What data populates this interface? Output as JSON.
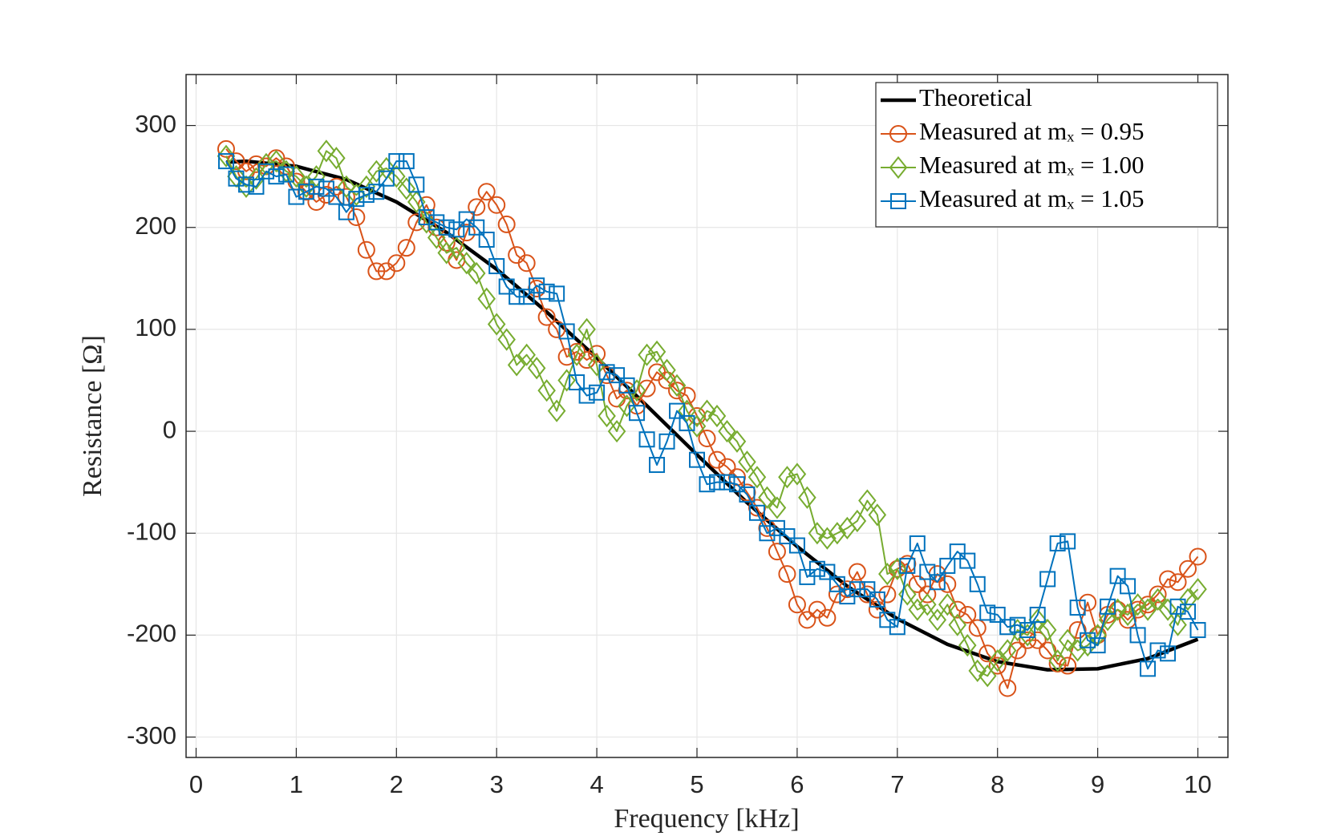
{
  "chart_data": {
    "type": "line",
    "xlabel": "Frequency [kHz]",
    "ylabel": "Resistance [Ω]",
    "xlim": [
      -0.1,
      10.3
    ],
    "ylim": [
      -320,
      350
    ],
    "xticks": [
      0,
      1,
      2,
      3,
      4,
      5,
      6,
      7,
      8,
      9,
      10
    ],
    "yticks": [
      -300,
      -200,
      -100,
      0,
      100,
      200,
      300
    ],
    "grid": true,
    "legend": "northeast",
    "x": [
      0.3,
      0.4,
      0.5,
      0.6,
      0.7,
      0.8,
      0.9,
      1.0,
      1.1,
      1.2,
      1.3,
      1.4,
      1.5,
      1.6,
      1.7,
      1.8,
      1.9,
      2.0,
      2.1,
      2.2,
      2.3,
      2.4,
      2.5,
      2.6,
      2.7,
      2.8,
      2.9,
      3.0,
      3.1,
      3.2,
      3.3,
      3.4,
      3.5,
      3.6,
      3.7,
      3.8,
      3.9,
      4.0,
      4.1,
      4.2,
      4.3,
      4.4,
      4.5,
      4.6,
      4.7,
      4.8,
      4.9,
      5.0,
      5.1,
      5.2,
      5.3,
      5.4,
      5.5,
      5.6,
      5.7,
      5.8,
      5.9,
      6.0,
      6.1,
      6.2,
      6.3,
      6.4,
      6.5,
      6.6,
      6.7,
      6.8,
      6.9,
      7.0,
      7.1,
      7.2,
      7.3,
      7.4,
      7.5,
      7.6,
      7.7,
      7.8,
      7.9,
      8.0,
      8.1,
      8.2,
      8.3,
      8.4,
      8.5,
      8.6,
      8.7,
      8.8,
      8.9,
      9.0,
      9.1,
      9.2,
      9.3,
      9.4,
      9.5,
      9.6,
      9.7,
      9.8,
      9.9,
      10.0
    ],
    "series": [
      {
        "name": "Theoretical",
        "color": "#000000",
        "marker": "none",
        "x": [
          0.3,
          0.5,
          1.0,
          1.5,
          2.0,
          2.5,
          3.0,
          3.5,
          4.0,
          4.5,
          5.0,
          5.5,
          6.0,
          6.5,
          7.0,
          7.5,
          8.0,
          8.5,
          9.0,
          9.5,
          10.0
        ],
        "values": [
          264,
          265,
          260,
          247,
          225,
          195,
          159,
          117,
          72,
          25,
          -23,
          -70,
          -113,
          -152,
          -184,
          -209,
          -226,
          -234,
          -233,
          -223,
          -204
        ]
      },
      {
        "name": "Measured at mₓ = 0.95",
        "color": "#d95319",
        "marker": "circle",
        "values": [
          277,
          265,
          255,
          262,
          260,
          268,
          260,
          245,
          235,
          225,
          232,
          240,
          230,
          210,
          178,
          157,
          157,
          165,
          180,
          205,
          222,
          200,
          185,
          168,
          195,
          220,
          235,
          222,
          203,
          173,
          165,
          140,
          112,
          100,
          73,
          78,
          70,
          76,
          55,
          32,
          40,
          25,
          42,
          58,
          50,
          40,
          35,
          15,
          -7,
          -28,
          -35,
          -45,
          -60,
          -75,
          -95,
          -118,
          -140,
          -170,
          -185,
          -175,
          -183,
          -160,
          -155,
          -138,
          -160,
          -175,
          -160,
          -135,
          -130,
          -150,
          -160,
          -140,
          -150,
          -175,
          -180,
          -193,
          -218,
          -230,
          -252,
          -215,
          -205,
          -205,
          -215,
          -228,
          -230,
          -195,
          -168,
          -200,
          -180,
          -175,
          -185,
          -175,
          -170,
          -160,
          -145,
          -148,
          -135,
          -123
        ]
      },
      {
        "name": "Measured at mₓ = 1.00",
        "color": "#77ac30",
        "marker": "diamond",
        "values": [
          270,
          250,
          240,
          248,
          262,
          265,
          255,
          250,
          240,
          250,
          275,
          268,
          240,
          232,
          240,
          255,
          258,
          250,
          238,
          225,
          205,
          190,
          175,
          180,
          165,
          155,
          130,
          105,
          90,
          65,
          75,
          62,
          40,
          20,
          50,
          75,
          100,
          65,
          15,
          0,
          25,
          40,
          75,
          78,
          60,
          45,
          20,
          5,
          20,
          15,
          0,
          -10,
          -30,
          -45,
          -65,
          -75,
          -45,
          -42,
          -65,
          -100,
          -105,
          -100,
          -95,
          -88,
          -68,
          -82,
          -140,
          -135,
          -160,
          -175,
          -170,
          -185,
          -170,
          -190,
          -210,
          -235,
          -240,
          -225,
          -215,
          -195,
          -200,
          -185,
          -195,
          -225,
          -205,
          -215,
          -210,
          -200,
          -185,
          -175,
          -180,
          -170,
          -175,
          -165,
          -175,
          -190,
          -165,
          -155
        ]
      },
      {
        "name": "Measured at mₓ = 1.05",
        "color": "#0072bd",
        "marker": "square",
        "values": [
          265,
          248,
          242,
          240,
          255,
          250,
          252,
          230,
          235,
          240,
          238,
          230,
          215,
          228,
          232,
          235,
          248,
          265,
          265,
          242,
          210,
          205,
          200,
          198,
          208,
          200,
          188,
          162,
          142,
          132,
          132,
          143,
          137,
          135,
          98,
          48,
          35,
          38,
          58,
          55,
          45,
          18,
          -8,
          -33,
          -10,
          20,
          8,
          -28,
          -52,
          -50,
          -50,
          -52,
          -62,
          -80,
          -100,
          -95,
          -103,
          -112,
          -143,
          -135,
          -138,
          -150,
          -162,
          -155,
          -155,
          -165,
          -185,
          -192,
          -132,
          -110,
          -138,
          -148,
          -132,
          -118,
          -127,
          -150,
          -178,
          -180,
          -192,
          -190,
          -195,
          -180,
          -145,
          -110,
          -108,
          -173,
          -205,
          -210,
          -172,
          -142,
          -152,
          -200,
          -233,
          -215,
          -218,
          -172,
          -177,
          -195
        ]
      }
    ]
  }
}
